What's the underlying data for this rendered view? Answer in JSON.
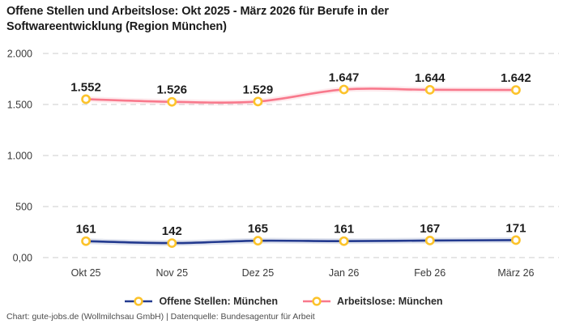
{
  "header": {
    "title_line1": "Offene Stellen und Arbeitslose: Okt 2025 - März 2026 für Berufe in der",
    "title_line2": "Softwareentwicklung (Region München)"
  },
  "footer": {
    "text": "Chart: gute-jobs.de (Wollmilchsau GmbH) | Datenquelle: Bundesagentur für Arbeit"
  },
  "colors": {
    "open_positions_line": "#233A8F",
    "unemployed_line": "#F8798C",
    "marker_ring": "#FCC32B",
    "marker_fill": "#ffffff",
    "gridline": "#cccccc",
    "title_text": "#1a1a1a",
    "tick_text": "#3a3a3a"
  },
  "chart_data": {
    "type": "line",
    "categories": [
      "Okt 25",
      "Nov 25",
      "Dez 25",
      "Jan 26",
      "Feb 26",
      "März 26"
    ],
    "series": [
      {
        "name": "Offene Stellen: München",
        "values": [
          161,
          142,
          165,
          161,
          167,
          171
        ],
        "labels": [
          "161",
          "142",
          "165",
          "161",
          "167",
          "171"
        ],
        "color": "#233A8F"
      },
      {
        "name": "Arbeitslose: München",
        "values": [
          1552,
          1526,
          1529,
          1647,
          1644,
          1642
        ],
        "labels": [
          "1.552",
          "1.526",
          "1.529",
          "1.647",
          "1.644",
          "1.642"
        ],
        "color": "#F8798C"
      }
    ],
    "marker_color": "#FCC32B",
    "ylim": [
      0,
      2000
    ],
    "yticks": [
      {
        "value": 0,
        "label": "0,00"
      },
      {
        "value": 500,
        "label": "500"
      },
      {
        "value": 1000,
        "label": "1.000"
      },
      {
        "value": 1500,
        "label": "1.500"
      },
      {
        "value": 2000,
        "label": "2.000"
      }
    ],
    "grid": "horizontal-dashed",
    "legend_position": "bottom"
  }
}
